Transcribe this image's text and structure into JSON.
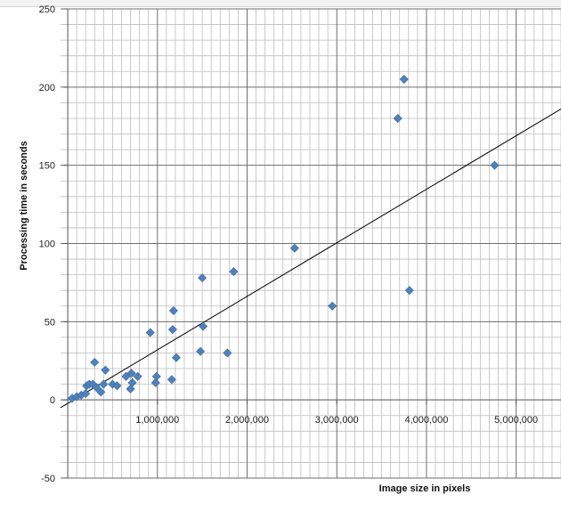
{
  "chart_data": {
    "type": "scatter",
    "title": "",
    "xlabel": "Image size  in pixels",
    "ylabel": "Processing time in seconds",
    "xlim": [
      -80000,
      5500000
    ],
    "ylim": [
      -50,
      250
    ],
    "x_ticks": [
      1000000,
      2000000,
      3000000,
      4000000,
      5000000
    ],
    "x_tick_labels": [
      "1,000,000",
      "2,000,000",
      "3,000,000",
      "4,000,000",
      "5,000,000"
    ],
    "y_ticks": [
      -50,
      0,
      50,
      100,
      150,
      200,
      250
    ],
    "y_tick_labels": [
      "-50",
      "0",
      "50",
      "100",
      "150",
      "200",
      "250"
    ],
    "grid": true,
    "legend": "none",
    "marker": "diamond",
    "series": [
      {
        "color": "#4f81bd",
        "points": [
          {
            "x": 50000,
            "y": 1
          },
          {
            "x": 100000,
            "y": 2
          },
          {
            "x": 150000,
            "y": 3
          },
          {
            "x": 200000,
            "y": 4
          },
          {
            "x": 210000,
            "y": 9
          },
          {
            "x": 240000,
            "y": 10
          },
          {
            "x": 280000,
            "y": 10
          },
          {
            "x": 300000,
            "y": 24
          },
          {
            "x": 320000,
            "y": 8
          },
          {
            "x": 370000,
            "y": 5
          },
          {
            "x": 400000,
            "y": 10
          },
          {
            "x": 420000,
            "y": 19
          },
          {
            "x": 500000,
            "y": 10
          },
          {
            "x": 550000,
            "y": 9
          },
          {
            "x": 650000,
            "y": 15
          },
          {
            "x": 700000,
            "y": 7
          },
          {
            "x": 710000,
            "y": 17
          },
          {
            "x": 720000,
            "y": 11
          },
          {
            "x": 780000,
            "y": 15
          },
          {
            "x": 920000,
            "y": 43
          },
          {
            "x": 980000,
            "y": 11
          },
          {
            "x": 990000,
            "y": 15
          },
          {
            "x": 1160000,
            "y": 13
          },
          {
            "x": 1170000,
            "y": 45
          },
          {
            "x": 1180000,
            "y": 57
          },
          {
            "x": 1210000,
            "y": 27
          },
          {
            "x": 1480000,
            "y": 31
          },
          {
            "x": 1500000,
            "y": 78
          },
          {
            "x": 1510000,
            "y": 47
          },
          {
            "x": 1780000,
            "y": 30
          },
          {
            "x": 1850000,
            "y": 82
          },
          {
            "x": 2530000,
            "y": 97
          },
          {
            "x": 2950000,
            "y": 60
          },
          {
            "x": 3680000,
            "y": 180
          },
          {
            "x": 3750000,
            "y": 205
          },
          {
            "x": 3810000,
            "y": 70
          },
          {
            "x": 4760000,
            "y": 150
          }
        ]
      }
    ],
    "trendline": {
      "type": "linear",
      "color": "#000000",
      "from": {
        "x": -80000,
        "y": -5
      },
      "to": {
        "x": 5500000,
        "y": 186
      }
    }
  }
}
